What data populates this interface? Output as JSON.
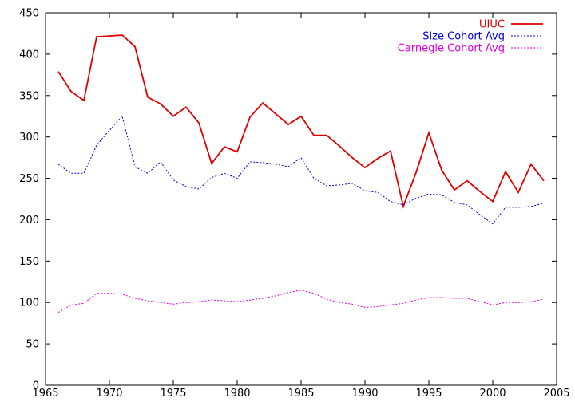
{
  "chart_data": {
    "type": "line",
    "title": "",
    "xlabel": "",
    "ylabel": "",
    "xlim": [
      1965,
      2005
    ],
    "ylim": [
      0,
      450
    ],
    "x_ticks": [
      "1965",
      "1970",
      "1975",
      "1980",
      "1985",
      "1990",
      "1995",
      "2000",
      "2005"
    ],
    "y_ticks": [
      "0",
      "50",
      "100",
      "150",
      "200",
      "250",
      "300",
      "350",
      "400",
      "450"
    ],
    "grid": false,
    "legend_position": "top-right",
    "series": [
      {
        "name": "UIUC",
        "color": "#e00000",
        "style": "solid",
        "x": [
          1966,
          1967,
          1968,
          1969,
          1970,
          1971,
          1972,
          1973,
          1974,
          1975,
          1976,
          1977,
          1978,
          1979,
          1980,
          1981,
          1982,
          1983,
          1984,
          1985,
          1986,
          1987,
          1988,
          1989,
          1990,
          1991,
          1992,
          1993,
          1994,
          1995,
          1996,
          1997,
          1998,
          1999,
          2000,
          2001,
          2002,
          2003,
          2004
        ],
        "values": [
          379,
          355,
          344,
          421,
          422,
          423,
          409,
          348,
          340,
          325,
          336,
          317,
          268,
          288,
          282,
          324,
          341,
          328,
          315,
          325,
          302,
          302,
          289,
          275,
          263,
          274,
          283,
          216,
          257,
          305,
          260,
          236,
          247,
          234,
          222,
          258,
          233,
          267,
          247
        ]
      },
      {
        "name": "Size Cohort Avg",
        "color": "#0000e0",
        "style": "dotted",
        "x": [
          1966,
          1967,
          1968,
          1969,
          1970,
          1971,
          1972,
          1973,
          1974,
          1975,
          1976,
          1977,
          1978,
          1979,
          1980,
          1981,
          1982,
          1983,
          1984,
          1985,
          1986,
          1987,
          1988,
          1989,
          1990,
          1991,
          1992,
          1993,
          1994,
          1995,
          1996,
          1997,
          1998,
          1999,
          2000,
          2001,
          2002,
          2003,
          2004
        ],
        "values": [
          267,
          256,
          256,
          290,
          308,
          325,
          264,
          256,
          270,
          248,
          240,
          237,
          251,
          256,
          250,
          270,
          269,
          267,
          264,
          275,
          250,
          241,
          242,
          244,
          235,
          233,
          222,
          218,
          226,
          231,
          230,
          221,
          218,
          206,
          195,
          215,
          215,
          216,
          220
        ]
      },
      {
        "name": "Carnegie Cohort Avg",
        "color": "#e000e0",
        "style": "dotted",
        "x": [
          1966,
          1967,
          1968,
          1969,
          1970,
          1971,
          1972,
          1973,
          1974,
          1975,
          1976,
          1977,
          1978,
          1979,
          1980,
          1981,
          1982,
          1983,
          1984,
          1985,
          1986,
          1987,
          1988,
          1989,
          1990,
          1991,
          1992,
          1993,
          1994,
          1995,
          1996,
          1997,
          1998,
          1999,
          2000,
          2001,
          2002,
          2003,
          2004
        ],
        "values": [
          88,
          97,
          99,
          111,
          111,
          110,
          105,
          102,
          100,
          98,
          100,
          101,
          103,
          102,
          101,
          103,
          105,
          108,
          112,
          115,
          111,
          104,
          100,
          98,
          94,
          95,
          97,
          99,
          103,
          106,
          106,
          105,
          105,
          101,
          97,
          100,
          100,
          101,
          104
        ]
      }
    ]
  }
}
